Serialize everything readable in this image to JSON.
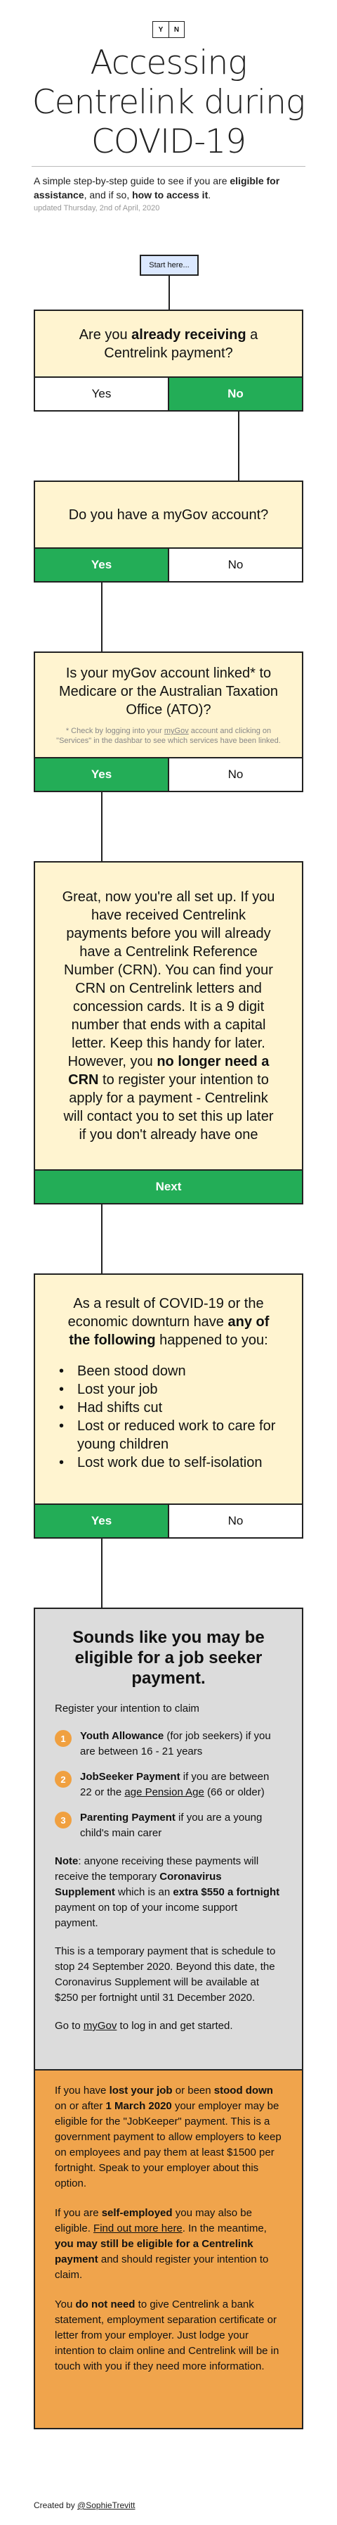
{
  "header": {
    "logo_left": "Y",
    "logo_right": "N",
    "title": "Accessing Centrelink during COVID-19",
    "subtitle_1": "A simple step-by-step guide to see if you are ",
    "subtitle_bold_1": "eligible for assistance",
    "subtitle_2": ", and if so, ",
    "subtitle_bold_2": "how to access it",
    "subtitle_3": ".",
    "updated": "updated Thursday, 2nd of April, 2020"
  },
  "start_button": "Start here...",
  "q1": {
    "text_1": "Are you ",
    "text_bold": "already receiving",
    "text_2": " a Centrelink payment?",
    "yes": "Yes",
    "no": "No"
  },
  "q2": {
    "text": "Do you have a myGov account?",
    "yes": "Yes",
    "no": "No"
  },
  "q3": {
    "text": "Is your myGov account linked* to Medicare or the Australian Taxation Office (ATO)?",
    "note_1": "* Check by logging into your ",
    "note_link": "myGov",
    "note_2": " account and clicking on \"Services\" in the dashbar to see which services have been linked.",
    "yes": "Yes",
    "no": "No"
  },
  "setup": {
    "text_1": "Great, now you're all set up. If you have received Centrelink payments before you will already have a Centrelink Reference Number (CRN). You can find your CRN on Centrelink letters and concession cards. It is a 9 digit number that ends with a capital letter. Keep this handy for later. However, you ",
    "text_bold": "no longer need a CRN",
    "text_2": " to register your intention to apply for a payment - Centrelink will contact you to set this up later if you don't already have one",
    "next": "Next"
  },
  "q4": {
    "intro_1": "As a result of COVID-19 or the economic downturn have ",
    "intro_bold": "any of the following",
    "intro_2": " happened to you:",
    "items": [
      "Been stood down",
      "Lost your job",
      "Had shifts cut",
      "Lost or reduced work to care for young children",
      "Lost work due to self-isolation"
    ],
    "yes": "Yes",
    "no": "No"
  },
  "result": {
    "heading": "Sounds like you may be eligible for a job seeker payment.",
    "register": "Register your intention to claim",
    "options": [
      {
        "num": "1",
        "bold": "Youth Allowance",
        "text": " (for job seekers) if you are between 16 - 21 years"
      },
      {
        "num": "2",
        "bold": "JobSeeker Payment",
        "text": " if you are between 22 or the ",
        "link": "age Pension Age",
        "text_2": " (66 or older)"
      },
      {
        "num": "3",
        "bold": "Parenting Payment",
        "text": " if you are a young child's main carer"
      }
    ],
    "note_bold_1": "Note",
    "note_1": ": anyone receiving these payments will receive the temporary ",
    "note_bold_2": "Coronavirus Supplement",
    "note_2": " which is an ",
    "note_bold_3": "extra $550 a fortnight",
    "note_3": " payment on top of your income support payment.",
    "temp": "This is a temporary payment that is schedule to stop 24 September 2020. Beyond this date, the Coronavirus Supplement will be available at $250 per fortnight until 31 December 2020.",
    "goto_1": "Go to ",
    "goto_link": "myGov",
    "goto_2": " to log in and get started."
  },
  "extra": {
    "p1_1": "If you have ",
    "p1_b1": "lost your job",
    "p1_2": " or been ",
    "p1_b2": "stood down",
    "p1_3": " on or after ",
    "p1_b3": "1 March 2020",
    "p1_4": " your employer may be eligible for the \"JobKeeper\" payment. This is a government payment to allow employers to keep on employees and pay them at least $1500 per fortnight. Speak to your employer about this option.",
    "p2_1": "If you are ",
    "p2_b1": "self-employed",
    "p2_2": " you may also be eligible. ",
    "p2_link": "Find out more here",
    "p2_3": ". In the meantime, ",
    "p2_b2": "you may still be eligible for a Centrelink payment",
    "p2_4": " and should register your intention to claim.",
    "p3_1": "You ",
    "p3_b1": "do not need",
    "p3_2": " to give Centrelink a bank statement, employment separation certificate or letter from your employer. Just lodge your intention to claim online and Centrelink will be in touch with you if they need more information."
  },
  "footer": {
    "text": "Created by ",
    "link": "@SophieTrevitt"
  }
}
